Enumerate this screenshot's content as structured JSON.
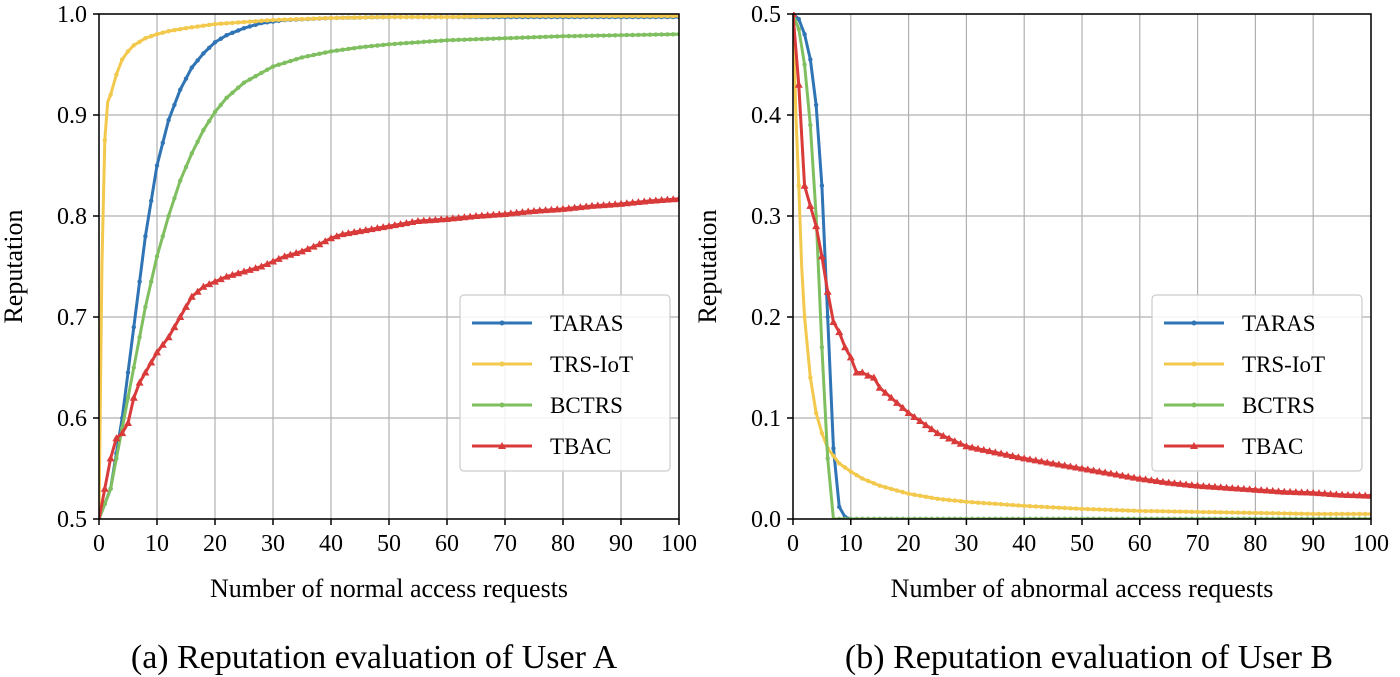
{
  "chart_data": [
    {
      "type": "line",
      "id": "a",
      "caption": "(a) Reputation evaluation of User A",
      "xlabel": "Number of normal access requests",
      "ylabel": "Reputation",
      "xlim": [
        0,
        100
      ],
      "ylim": [
        0.5,
        1.0
      ],
      "xticks": [
        0,
        10,
        20,
        30,
        40,
        50,
        60,
        70,
        80,
        90,
        100
      ],
      "xtick_labels": [
        "0",
        "10",
        "20",
        "30",
        "40",
        "50",
        "60",
        "70",
        "80",
        "90",
        "100"
      ],
      "yticks": [
        0.5,
        0.6,
        0.7,
        0.8,
        0.9,
        1.0
      ],
      "ytick_labels": [
        "0.5",
        "0.6",
        "0.7",
        "0.8",
        "0.9",
        "1.0"
      ],
      "grid": true,
      "legend_position": "center-right",
      "series": [
        {
          "name": "TARAS",
          "color": "#2f74b5",
          "marker": "dot",
          "x": [
            0,
            2,
            4,
            6,
            8,
            10,
            12,
            14,
            16,
            18,
            20,
            22,
            25,
            28,
            32,
            40,
            50,
            60,
            70,
            80,
            90,
            100
          ],
          "y": [
            0.5,
            0.53,
            0.6,
            0.69,
            0.78,
            0.85,
            0.895,
            0.925,
            0.947,
            0.961,
            0.972,
            0.979,
            0.986,
            0.991,
            0.994,
            0.996,
            0.997,
            0.997,
            0.997,
            0.997,
            0.997,
            0.997
          ]
        },
        {
          "name": "TRS-IoT",
          "color": "#f2c94c",
          "marker": "dot",
          "x": [
            0,
            0.5,
            1,
            1.5,
            2,
            3,
            4,
            5,
            6,
            8,
            10,
            12,
            15,
            20,
            25,
            30,
            40,
            50,
            60,
            70,
            80,
            90,
            100
          ],
          "y": [
            0.5,
            0.75,
            0.875,
            0.913,
            0.92,
            0.94,
            0.955,
            0.963,
            0.969,
            0.976,
            0.98,
            0.983,
            0.986,
            0.99,
            0.992,
            0.994,
            0.996,
            0.997,
            0.997,
            0.998,
            0.998,
            0.998,
            0.998
          ]
        },
        {
          "name": "BCTRS",
          "color": "#7fbf5f",
          "marker": "dot",
          "x": [
            0,
            2,
            4,
            6,
            8,
            10,
            12,
            14,
            16,
            18,
            20,
            22,
            25,
            30,
            35,
            40,
            45,
            50,
            60,
            70,
            80,
            90,
            100
          ],
          "y": [
            0.5,
            0.53,
            0.59,
            0.65,
            0.71,
            0.76,
            0.8,
            0.835,
            0.862,
            0.885,
            0.903,
            0.917,
            0.932,
            0.948,
            0.957,
            0.963,
            0.967,
            0.97,
            0.974,
            0.976,
            0.978,
            0.979,
            0.98
          ]
        },
        {
          "name": "TBAC",
          "color": "#d93a3a",
          "marker": "triangle",
          "x": [
            0,
            1,
            2,
            3,
            4,
            5,
            6,
            7,
            8,
            9,
            10,
            12,
            14,
            16,
            18,
            20,
            22,
            25,
            28,
            30,
            32,
            35,
            38,
            40,
            42,
            45,
            50,
            55,
            60,
            65,
            70,
            75,
            80,
            85,
            90,
            95,
            100
          ],
          "y": [
            0.5,
            0.53,
            0.56,
            0.58,
            0.585,
            0.595,
            0.62,
            0.635,
            0.645,
            0.655,
            0.665,
            0.68,
            0.7,
            0.72,
            0.73,
            0.735,
            0.74,
            0.745,
            0.75,
            0.755,
            0.76,
            0.765,
            0.772,
            0.778,
            0.782,
            0.785,
            0.79,
            0.795,
            0.797,
            0.8,
            0.802,
            0.805,
            0.807,
            0.81,
            0.812,
            0.815,
            0.817
          ]
        }
      ]
    },
    {
      "type": "line",
      "id": "b",
      "caption": "(b) Reputation evaluation of User B",
      "xlabel": "Number of abnormal access requests",
      "ylabel": "Reputation",
      "xlim": [
        0,
        100
      ],
      "ylim": [
        0.0,
        0.5
      ],
      "xticks": [
        0,
        10,
        20,
        30,
        40,
        50,
        60,
        70,
        80,
        90,
        100
      ],
      "xtick_labels": [
        "0",
        "10",
        "20",
        "30",
        "40",
        "50",
        "60",
        "70",
        "80",
        "90",
        "100"
      ],
      "yticks": [
        0.0,
        0.1,
        0.2,
        0.3,
        0.4,
        0.5
      ],
      "ytick_labels": [
        "0.0",
        "0.1",
        "0.2",
        "0.3",
        "0.4",
        "0.5"
      ],
      "grid": true,
      "legend_position": "center-right",
      "series": [
        {
          "name": "TARAS",
          "color": "#2f74b5",
          "marker": "dot",
          "x": [
            0,
            1,
            2,
            3,
            4,
            5,
            6,
            7,
            8,
            9,
            10,
            20,
            30,
            40,
            50,
            60,
            70,
            80,
            90,
            100
          ],
          "y": [
            0.5,
            0.495,
            0.48,
            0.455,
            0.41,
            0.33,
            0.2,
            0.07,
            0.012,
            0.002,
            0.0,
            0.0,
            0.0,
            0.0,
            0.0,
            0.0,
            0.0,
            0.0,
            0.0,
            0.0
          ]
        },
        {
          "name": "TRS-IoT",
          "color": "#f2c94c",
          "marker": "dot",
          "x": [
            0,
            0.5,
            1,
            1.5,
            2,
            3,
            4,
            5,
            6,
            8,
            10,
            12,
            15,
            20,
            25,
            30,
            40,
            50,
            60,
            70,
            80,
            90,
            100
          ],
          "y": [
            0.5,
            0.4,
            0.33,
            0.25,
            0.2,
            0.14,
            0.105,
            0.085,
            0.07,
            0.055,
            0.047,
            0.04,
            0.033,
            0.025,
            0.02,
            0.017,
            0.013,
            0.01,
            0.008,
            0.007,
            0.006,
            0.005,
            0.005
          ]
        },
        {
          "name": "BCTRS",
          "color": "#7fbf5f",
          "marker": "dot",
          "x": [
            0,
            1,
            2,
            3,
            4,
            5,
            6,
            7,
            8,
            10,
            20,
            30,
            40,
            50,
            60,
            70,
            80,
            90,
            100
          ],
          "y": [
            0.5,
            0.485,
            0.45,
            0.39,
            0.3,
            0.17,
            0.06,
            0.0,
            0.0,
            0.0,
            0.0,
            0.0,
            0.0,
            0.0,
            0.0,
            0.0,
            0.0,
            0.0,
            0.0
          ]
        },
        {
          "name": "TBAC",
          "color": "#d93a3a",
          "marker": "triangle",
          "x": [
            0,
            1,
            2,
            3,
            4,
            5,
            6,
            7,
            8,
            9,
            10,
            11,
            12,
            13,
            14,
            15,
            16,
            18,
            20,
            22,
            25,
            28,
            30,
            35,
            40,
            45,
            50,
            55,
            60,
            65,
            70,
            75,
            80,
            85,
            90,
            95,
            100
          ],
          "y": [
            0.5,
            0.43,
            0.33,
            0.31,
            0.29,
            0.26,
            0.225,
            0.195,
            0.185,
            0.17,
            0.16,
            0.145,
            0.145,
            0.142,
            0.14,
            0.13,
            0.125,
            0.115,
            0.105,
            0.097,
            0.085,
            0.077,
            0.072,
            0.066,
            0.06,
            0.055,
            0.05,
            0.045,
            0.04,
            0.036,
            0.033,
            0.031,
            0.029,
            0.027,
            0.026,
            0.024,
            0.023
          ]
        }
      ]
    }
  ]
}
